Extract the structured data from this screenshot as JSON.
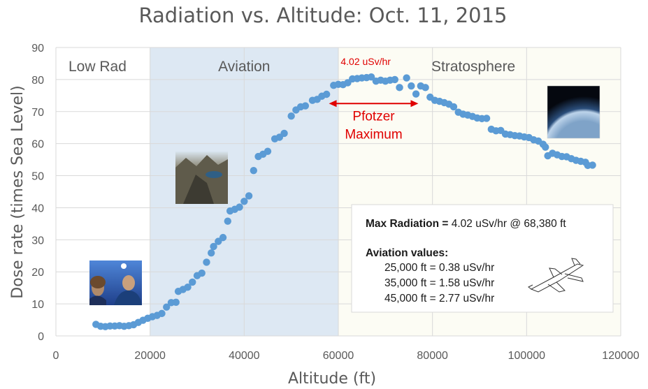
{
  "chart_data": {
    "type": "scatter",
    "title": "Radiation vs. Altitude: Oct. 11, 2015",
    "xlabel": "Altitude (ft)",
    "ylabel": "Dose rate  (times Sea Level)",
    "xlim": [
      0,
      120000
    ],
    "ylim": [
      0,
      90
    ],
    "x_ticks": [
      "0",
      "20000",
      "40000",
      "60000",
      "80000",
      "100000",
      "120000"
    ],
    "y_ticks": [
      "0",
      "10",
      "20",
      "30",
      "40",
      "50",
      "60",
      "70",
      "80",
      "90"
    ],
    "marker_color": "#5b9bd5",
    "regions": [
      {
        "name": "low",
        "label": "Low Rad",
        "x_start": 0,
        "x_end": 20000,
        "color": "#ffffff"
      },
      {
        "name": "aviation",
        "label": "Aviation",
        "x_start": 20000,
        "x_end": 60000,
        "color": "#dde8f3"
      },
      {
        "name": "stratosphere",
        "label": "Stratosphere",
        "x_start": 60000,
        "x_end": 120000,
        "color": "#fcfcf4"
      }
    ],
    "annotations": {
      "peak_value": "4.02 uSv/hr",
      "pfotzer_line1": "Pfotzer",
      "pfotzer_line2": "Maximum",
      "pfotzer_range_x": [
        58000,
        77000
      ],
      "pfotzer_y": 72.5
    },
    "points": [
      [
        8500,
        3.6
      ],
      [
        9500,
        3.0
      ],
      [
        10500,
        2.9
      ],
      [
        11500,
        3.1
      ],
      [
        12500,
        3.1
      ],
      [
        13500,
        3.2
      ],
      [
        14500,
        3.0
      ],
      [
        15500,
        3.2
      ],
      [
        16500,
        3.5
      ],
      [
        17500,
        4.2
      ],
      [
        18500,
        4.9
      ],
      [
        19500,
        5.5
      ],
      [
        20500,
        6.0
      ],
      [
        21500,
        6.4
      ],
      [
        22500,
        7.0
      ],
      [
        23500,
        9.0
      ],
      [
        24500,
        10.4
      ],
      [
        25500,
        10.5
      ],
      [
        26000,
        13.9
      ],
      [
        27000,
        14.5
      ],
      [
        28000,
        15.2
      ],
      [
        29000,
        16.8
      ],
      [
        30000,
        18.8
      ],
      [
        31000,
        19.6
      ],
      [
        32000,
        23.0
      ],
      [
        33000,
        25.9
      ],
      [
        33500,
        27.9
      ],
      [
        34500,
        29.5
      ],
      [
        35500,
        30.7
      ],
      [
        36500,
        35.8
      ],
      [
        37000,
        39.0
      ],
      [
        38000,
        39.5
      ],
      [
        39000,
        40.2
      ],
      [
        40000,
        42.0
      ],
      [
        41000,
        43.7
      ],
      [
        42000,
        51.6
      ],
      [
        43000,
        56.0
      ],
      [
        44000,
        56.7
      ],
      [
        45000,
        57.6
      ],
      [
        46500,
        61.5
      ],
      [
        47500,
        62.0
      ],
      [
        48500,
        63.2
      ],
      [
        50000,
        68.6
      ],
      [
        51000,
        70.5
      ],
      [
        52000,
        71.5
      ],
      [
        53000,
        71.8
      ],
      [
        54500,
        73.5
      ],
      [
        55500,
        73.8
      ],
      [
        56500,
        74.8
      ],
      [
        57500,
        75.4
      ],
      [
        59000,
        78.2
      ],
      [
        60000,
        78.5
      ],
      [
        61000,
        78.4
      ],
      [
        62000,
        79.0
      ],
      [
        63000,
        80.2
      ],
      [
        64000,
        80.3
      ],
      [
        65000,
        80.5
      ],
      [
        66000,
        80.6
      ],
      [
        67000,
        80.8
      ],
      [
        68000,
        79.5
      ],
      [
        69000,
        79.8
      ],
      [
        70000,
        79.5
      ],
      [
        71000,
        79.8
      ],
      [
        72000,
        80.0
      ],
      [
        73000,
        77.5
      ],
      [
        74500,
        80.5
      ],
      [
        75500,
        78.0
      ],
      [
        76500,
        75.5
      ],
      [
        77500,
        78.0
      ],
      [
        78500,
        77.5
      ],
      [
        79500,
        74.5
      ],
      [
        80500,
        73.5
      ],
      [
        81500,
        73.2
      ],
      [
        82500,
        72.8
      ],
      [
        83500,
        72.3
      ],
      [
        84500,
        71.5
      ],
      [
        85500,
        69.8
      ],
      [
        86500,
        69.2
      ],
      [
        87500,
        68.9
      ],
      [
        88500,
        68.5
      ],
      [
        89500,
        68.0
      ],
      [
        90500,
        67.8
      ],
      [
        91500,
        67.9
      ],
      [
        92500,
        64.5
      ],
      [
        93500,
        64.0
      ],
      [
        94500,
        64.1
      ],
      [
        95500,
        63.0
      ],
      [
        96500,
        62.8
      ],
      [
        97500,
        62.5
      ],
      [
        98500,
        62.4
      ],
      [
        99500,
        62.1
      ],
      [
        100500,
        61.9
      ],
      [
        101500,
        61.2
      ],
      [
        102500,
        60.8
      ],
      [
        103500,
        59.8
      ],
      [
        104000,
        58.9
      ],
      [
        104500,
        56.2
      ],
      [
        105500,
        57.0
      ],
      [
        106500,
        56.5
      ],
      [
        107500,
        56.0
      ],
      [
        108500,
        55.9
      ],
      [
        109500,
        55.3
      ],
      [
        110500,
        54.8
      ],
      [
        111500,
        54.5
      ],
      [
        112500,
        54.2
      ],
      [
        113000,
        53.2
      ],
      [
        114000,
        53.3
      ]
    ]
  },
  "info_box": {
    "line1_bold": "Max Radiation =",
    "line1_value": " 4.02 uSv/hr @ 68,380 ft",
    "heading": "Aviation values:",
    "rows": [
      "25,000 ft = 0.38 uSv/hr",
      "35,000 ft = 1.58 uSv/hr",
      "45,000 ft = 2.77 uSv/hr"
    ]
  },
  "photos": [
    {
      "name": "selfie-photo",
      "sky": "#3b6cc2",
      "ground": "#22366e"
    },
    {
      "name": "mountains-photo",
      "sky": "#c9d8e6",
      "ground": "#6f6a58"
    },
    {
      "name": "earth-from-stratosphere-photo",
      "sky": "#0c1424",
      "ground": "#6f8fb3"
    }
  ]
}
